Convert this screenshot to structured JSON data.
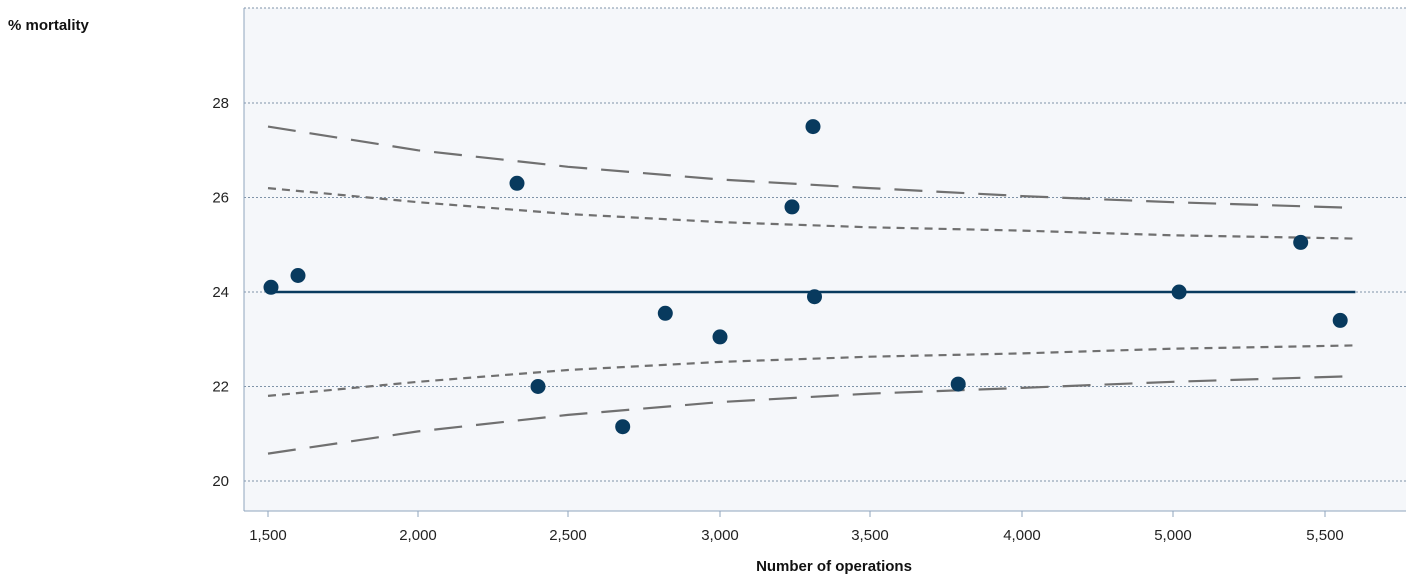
{
  "chart_data": {
    "type": "scatter",
    "title": "",
    "ylabel": "% mortality",
    "xlabel": "Number of operations",
    "x_tick_labels": [
      {
        "value": 1500,
        "label": "1,500"
      },
      {
        "value": 2000,
        "label": "2,000"
      },
      {
        "value": 2500,
        "label": "2,500"
      },
      {
        "value": 3000,
        "label": "3,000"
      },
      {
        "value": 3500,
        "label": "3,500"
      },
      {
        "value": 4000,
        "label": "4,000"
      },
      {
        "value": 5000,
        "label": "5,000"
      },
      {
        "value": 5500,
        "label": "5,500"
      }
    ],
    "y_tick_labels": [
      {
        "value": 20,
        "label": "20"
      },
      {
        "value": 22,
        "label": "22"
      },
      {
        "value": 24,
        "label": "24"
      },
      {
        "value": 26,
        "label": "26"
      },
      {
        "value": 28,
        "label": "28"
      }
    ],
    "ylim": [
      19.4,
      30
    ],
    "grid": true,
    "points": [
      {
        "x": 1510,
        "y": 24.1
      },
      {
        "x": 1600,
        "y": 24.35
      },
      {
        "x": 2330,
        "y": 26.3
      },
      {
        "x": 2400,
        "y": 22.0
      },
      {
        "x": 2680,
        "y": 21.15
      },
      {
        "x": 2820,
        "y": 23.55
      },
      {
        "x": 3000,
        "y": 23.05
      },
      {
        "x": 3240,
        "y": 25.8
      },
      {
        "x": 3310,
        "y": 27.5
      },
      {
        "x": 3315,
        "y": 23.9
      },
      {
        "x": 3790,
        "y": 22.05
      },
      {
        "x": 5020,
        "y": 24.0
      },
      {
        "x": 5420,
        "y": 25.05
      },
      {
        "x": 5550,
        "y": 23.4
      }
    ],
    "mean_line": {
      "y": 24.0,
      "x_range": [
        1500,
        5600
      ]
    },
    "limits_inner": {
      "upper": [
        {
          "x": 1500,
          "y": 26.2
        },
        {
          "x": 2000,
          "y": 25.9
        },
        {
          "x": 2500,
          "y": 25.65
        },
        {
          "x": 3000,
          "y": 25.48
        },
        {
          "x": 3500,
          "y": 25.37
        },
        {
          "x": 4000,
          "y": 25.3
        },
        {
          "x": 5000,
          "y": 25.2
        },
        {
          "x": 5600,
          "y": 25.13
        }
      ],
      "lower": [
        {
          "x": 1500,
          "y": 21.8
        },
        {
          "x": 2000,
          "y": 22.1
        },
        {
          "x": 2500,
          "y": 22.35
        },
        {
          "x": 3000,
          "y": 22.52
        },
        {
          "x": 3500,
          "y": 22.63
        },
        {
          "x": 4000,
          "y": 22.7
        },
        {
          "x": 5000,
          "y": 22.8
        },
        {
          "x": 5600,
          "y": 22.87
        }
      ]
    },
    "limits_outer": {
      "upper": [
        {
          "x": 1500,
          "y": 27.5
        },
        {
          "x": 2000,
          "y": 27.0
        },
        {
          "x": 2500,
          "y": 26.65
        },
        {
          "x": 3000,
          "y": 26.38
        },
        {
          "x": 3500,
          "y": 26.2
        },
        {
          "x": 4000,
          "y": 26.03
        },
        {
          "x": 5000,
          "y": 25.9
        },
        {
          "x": 5600,
          "y": 25.78
        }
      ],
      "lower": [
        {
          "x": 1500,
          "y": 20.58
        },
        {
          "x": 2000,
          "y": 21.05
        },
        {
          "x": 2500,
          "y": 21.4
        },
        {
          "x": 3000,
          "y": 21.67
        },
        {
          "x": 3500,
          "y": 21.85
        },
        {
          "x": 4000,
          "y": 21.97
        },
        {
          "x": 5000,
          "y": 22.1
        },
        {
          "x": 5600,
          "y": 22.22
        }
      ]
    },
    "colors": {
      "plot_background": "#f5f7fa",
      "points": "#083a5e",
      "mean_line": "#083a5e",
      "limits": "#707070",
      "grid": "#7f93a8",
      "axis": "#8fa4be"
    }
  }
}
